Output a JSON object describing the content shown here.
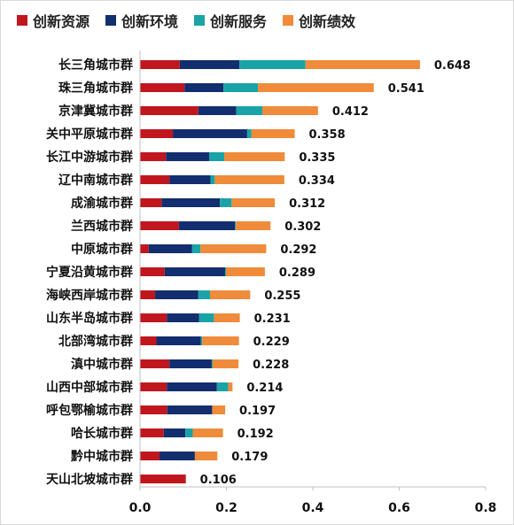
{
  "chart_data": {
    "type": "bar",
    "orientation": "horizontal",
    "stacked": true,
    "legend_position": "top",
    "grid": false,
    "xlim": [
      0,
      0.8
    ],
    "xticks": [
      "0.0",
      "0.2",
      "0.4",
      "0.6",
      "0.8"
    ],
    "categories": [
      "长三角城市群",
      "珠三角城市群",
      "京津冀城市群",
      "关中平原城市群",
      "长江中游城市群",
      "辽中南城市群",
      "成渝城市群",
      "兰西城市群",
      "中原城市群",
      "宁夏沿黄城市群",
      "海峡西岸城市群",
      "山东半岛城市群",
      "北部湾城市群",
      "滇中城市群",
      "山西中部城市群",
      "呼包鄂榆城市群",
      "哈长城市群",
      "黔中城市群",
      "天山北坡城市群"
    ],
    "totals": [
      0.648,
      0.541,
      0.412,
      0.358,
      0.335,
      0.334,
      0.312,
      0.302,
      0.292,
      0.289,
      0.255,
      0.231,
      0.229,
      0.228,
      0.214,
      0.197,
      0.192,
      0.179,
      0.106
    ],
    "total_labels": [
      "0.648",
      "0.541",
      "0.412",
      "0.358",
      "0.335",
      "0.334",
      "0.312",
      "0.302",
      "0.292",
      "0.289",
      "0.255",
      "0.231",
      "0.229",
      "0.228",
      "0.214",
      "0.197",
      "0.192",
      "0.179",
      "0.106"
    ],
    "series": [
      {
        "name": "创新资源",
        "color": "#c0161e",
        "values": [
          0.092,
          0.103,
          0.135,
          0.076,
          0.06,
          0.068,
          0.05,
          0.09,
          0.02,
          0.057,
          0.035,
          0.062,
          0.038,
          0.068,
          0.062,
          0.063,
          0.055,
          0.045,
          0.106
        ]
      },
      {
        "name": "创新环境",
        "color": "#132e6e",
        "values": [
          0.138,
          0.09,
          0.088,
          0.172,
          0.1,
          0.095,
          0.135,
          0.13,
          0.1,
          0.14,
          0.1,
          0.075,
          0.103,
          0.098,
          0.116,
          0.104,
          0.05,
          0.082,
          0.0
        ]
      },
      {
        "name": "创新服务",
        "color": "#1aa3a6",
        "values": [
          0.153,
          0.08,
          0.06,
          0.01,
          0.035,
          0.01,
          0.027,
          0.002,
          0.02,
          0.002,
          0.027,
          0.034,
          0.003,
          0.002,
          0.026,
          0.0,
          0.017,
          0.0,
          0.0
        ]
      },
      {
        "name": "创新绩效",
        "color": "#ef8b3a",
        "values": [
          0.265,
          0.268,
          0.129,
          0.1,
          0.14,
          0.161,
          0.1,
          0.08,
          0.152,
          0.09,
          0.093,
          0.06,
          0.085,
          0.06,
          0.01,
          0.03,
          0.07,
          0.052,
          0.0
        ]
      }
    ]
  }
}
